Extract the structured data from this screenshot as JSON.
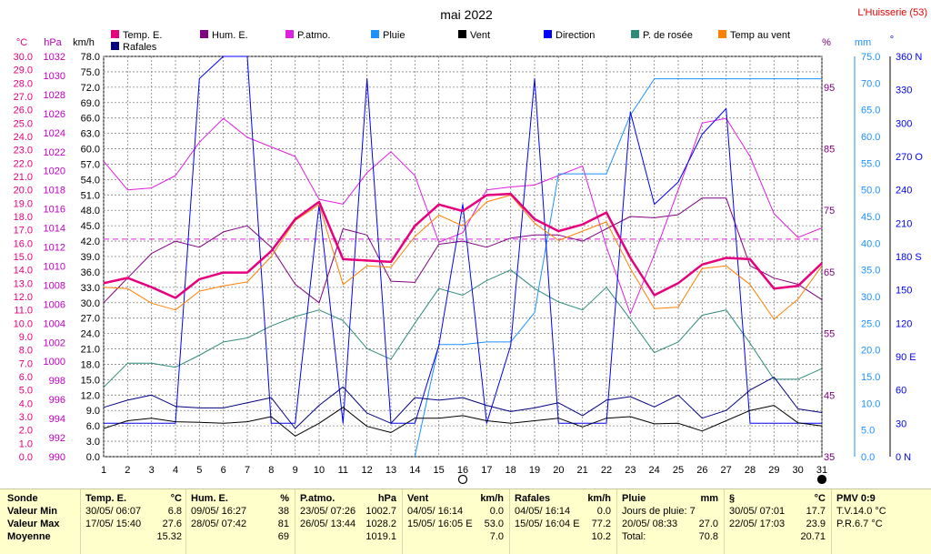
{
  "title": "mai 2022",
  "station": "L'Huisserie (53)",
  "colors": {
    "temp": "#e6007e",
    "hum": "#800080",
    "press": "#e020e0",
    "rain": "#1e90ff",
    "wind": "#000000",
    "dir": "#0000ff",
    "dew": "#2e8b7a",
    "chill": "#ff8000",
    "gust": "#000080",
    "grid": "#808080",
    "text": "#000000",
    "axis_press": "#c000c0"
  },
  "axes": {
    "temp_unit": "°C",
    "press_unit": "hPa",
    "wind_unit": "km/h",
    "hum_unit": "%",
    "rain_unit": "mm",
    "dir_unit": "°",
    "temp_ticks": [
      "0.0",
      "1.0",
      "2.0",
      "3.0",
      "4.0",
      "5.0",
      "6.0",
      "7.0",
      "8.0",
      "9.0",
      "10.0",
      "11.0",
      "12.0",
      "13.0",
      "14.0",
      "15.0",
      "16.0",
      "17.0",
      "18.0",
      "19.0",
      "20.0",
      "21.0",
      "22.0",
      "23.0",
      "24.0",
      "25.0",
      "26.0",
      "27.0",
      "28.0",
      "29.0",
      "30.0"
    ],
    "press_ticks": [
      "990",
      "992",
      "994",
      "996",
      "998",
      "1000",
      "1002",
      "1004",
      "1006",
      "1008",
      "1010",
      "1012",
      "1014",
      "1016",
      "1018",
      "1020",
      "1022",
      "1024",
      "1026",
      "1028",
      "1030",
      "1032"
    ],
    "wind_ticks": [
      "0.0",
      "3.0",
      "6.0",
      "9.0",
      "12.0",
      "15.0",
      "18.0",
      "21.0",
      "24.0",
      "27.0",
      "30.0",
      "33.0",
      "36.0",
      "39.0",
      "42.0",
      "45.0",
      "48.0",
      "51.0",
      "54.0",
      "57.0",
      "60.0",
      "63.0",
      "66.0",
      "69.0",
      "72.0",
      "75.0",
      "78.0"
    ],
    "hum_ticks": [
      "35",
      "45",
      "55",
      "65",
      "75",
      "85",
      "95"
    ],
    "rain_ticks": [
      "0.0",
      "5.0",
      "10.0",
      "15.0",
      "20.0",
      "25.0",
      "30.0",
      "35.0",
      "40.0",
      "45.0",
      "50.0",
      "55.0",
      "60.0",
      "65.0",
      "70.0",
      "75.0"
    ],
    "dir_ticks": [
      "0 N",
      "30",
      "60",
      "90 E",
      "120",
      "150",
      "180 S",
      "210",
      "240",
      "270 O",
      "300",
      "330",
      "360 N"
    ],
    "x_ticks": [
      "1",
      "2",
      "3",
      "4",
      "5",
      "6",
      "7",
      "8",
      "9",
      "10",
      "11",
      "12",
      "13",
      "14",
      "15",
      "16",
      "17",
      "18",
      "19",
      "20",
      "21",
      "22",
      "23",
      "24",
      "25",
      "26",
      "27",
      "28",
      "29",
      "30",
      "31"
    ]
  },
  "legend": [
    {
      "label": "Temp. E.",
      "color": "#e6007e"
    },
    {
      "label": "Hum. E.",
      "color": "#800080"
    },
    {
      "label": "P.atmo.",
      "color": "#e020e0"
    },
    {
      "label": "Pluie",
      "color": "#1e90ff"
    },
    {
      "label": "Vent",
      "color": "#000000"
    },
    {
      "label": "Direction",
      "color": "#0000ff"
    },
    {
      "label": "P. de rosée",
      "color": "#2e8b7a"
    },
    {
      "label": "Temp au vent",
      "color": "#ff8000"
    },
    {
      "label": "Rafales",
      "color": "#000080"
    }
  ],
  "chart_data": {
    "type": "line",
    "title": "mai 2022",
    "x": [
      1,
      2,
      3,
      4,
      5,
      6,
      7,
      8,
      9,
      10,
      11,
      12,
      13,
      14,
      15,
      16,
      17,
      18,
      19,
      20,
      21,
      22,
      23,
      24,
      25,
      26,
      27,
      28,
      29,
      30,
      31
    ],
    "xlim": [
      1,
      31
    ],
    "temp_ylim": [
      0,
      30
    ],
    "press_ylim": [
      990,
      1032
    ],
    "wind_ylim": [
      0,
      78
    ],
    "hum_ylim": [
      35,
      100
    ],
    "rain_ylim": [
      0,
      75
    ],
    "dir_ylim": [
      0,
      360
    ],
    "grid": true,
    "series": [
      {
        "name": "Temp. E.",
        "axis": "temp",
        "color": "#e6007e",
        "width": 2.5,
        "values": [
          13.0,
          13.4,
          12.7,
          11.9,
          13.3,
          13.8,
          13.8,
          15.4,
          17.8,
          19.1,
          14.8,
          14.7,
          14.6,
          17.3,
          18.9,
          18.4,
          19.6,
          19.7,
          17.8,
          16.9,
          17.4,
          18.3,
          14.9,
          12.1,
          13.0,
          14.4,
          14.9,
          14.8,
          12.6,
          12.8,
          14.5
        ]
      },
      {
        "name": "Hum. E.",
        "axis": "hum",
        "color": "#800080",
        "width": 1,
        "values": [
          60,
          64,
          68,
          70,
          69,
          71.5,
          72.5,
          69,
          63,
          60,
          72,
          71,
          63.5,
          63.3,
          69.5,
          70,
          69,
          70.5,
          71,
          71,
          70,
          72,
          74,
          73.8,
          74.3,
          77,
          77,
          66,
          64,
          63,
          60.5
        ]
      },
      {
        "name": "P.atmo.",
        "axis": "press",
        "color": "#e020e0",
        "width": 1,
        "values": [
          1021.0,
          1018.0,
          1018.2,
          1019.5,
          1023.0,
          1025.5,
          1023.5,
          1022.5,
          1021.5,
          1017.0,
          1016.5,
          1019.8,
          1022.0,
          1019.5,
          1012.5,
          1013.5,
          1018.0,
          1018.3,
          1018.5,
          1019.5,
          1020.5,
          1012.0,
          1005.0,
          1011.2,
          1018.0,
          1025.0,
          1025.5,
          1021.5,
          1015.5,
          1013.0,
          1014.0
        ]
      },
      {
        "name": "Pluie",
        "axis": "rain",
        "color": "#1e90ff",
        "width": 1,
        "values": [
          null,
          null,
          null,
          null,
          null,
          null,
          null,
          null,
          null,
          null,
          null,
          null,
          null,
          0.0,
          21.0,
          21.0,
          21.5,
          21.5,
          27.0,
          53.0,
          53.0,
          53.0,
          64.0,
          70.8,
          70.8,
          70.8,
          70.8,
          70.8,
          70.8,
          70.8,
          70.8
        ]
      },
      {
        "name": "Vent",
        "axis": "wind",
        "color": "#000000",
        "width": 1,
        "values": [
          5.5,
          7.0,
          7.5,
          6.8,
          6.7,
          6.5,
          6.8,
          7.8,
          4.0,
          6.5,
          9.6,
          5.9,
          4.7,
          7.5,
          7.5,
          8.0,
          7.0,
          6.5,
          7.0,
          7.5,
          5.8,
          7.5,
          7.8,
          6.4,
          6.5,
          5.0,
          7.0,
          9.0,
          10.0,
          6.6,
          6.0
        ]
      },
      {
        "name": "Direction",
        "axis": "dir",
        "color": "#0000ff",
        "width": 1,
        "values": [
          30,
          30,
          30,
          30,
          340,
          360,
          360,
          30,
          30,
          227,
          30,
          340,
          30,
          30,
          100,
          227,
          30,
          100,
          340,
          30,
          30,
          30,
          310,
          227,
          247,
          290,
          313,
          30,
          30,
          30,
          30
        ]
      },
      {
        "name": "P. de rosée",
        "axis": "temp",
        "color": "#2e8b7a",
        "width": 1,
        "values": [
          5.2,
          7.0,
          7.0,
          6.7,
          7.6,
          8.6,
          8.9,
          9.8,
          10.5,
          11.0,
          10.2,
          8.1,
          7.3,
          10.0,
          12.6,
          12.1,
          13.2,
          14.0,
          12.6,
          11.6,
          11.0,
          12.7,
          10.3,
          7.8,
          8.6,
          10.6,
          11.0,
          8.5,
          5.8,
          5.8,
          6.6
        ]
      },
      {
        "name": "Temp au vent",
        "axis": "temp",
        "color": "#ff8000",
        "width": 1,
        "values": [
          12.7,
          12.6,
          11.5,
          11.0,
          12.4,
          12.8,
          13.1,
          15.0,
          17.7,
          18.9,
          12.9,
          14.3,
          14.2,
          16.5,
          18.1,
          17.3,
          19.1,
          19.6,
          17.5,
          16.2,
          16.9,
          17.6,
          14.1,
          11.1,
          11.2,
          14.1,
          14.3,
          12.9,
          10.3,
          11.8,
          14.3
        ]
      },
      {
        "name": "Rafales",
        "axis": "wind",
        "color": "#000080",
        "width": 1,
        "values": [
          9.6,
          11.0,
          12.0,
          9.8,
          9.5,
          9.5,
          10.5,
          11.5,
          5.5,
          10.0,
          13.6,
          8.5,
          6.5,
          11.5,
          11.0,
          11.5,
          10.0,
          8.8,
          9.5,
          10.5,
          8.0,
          11.0,
          11.7,
          9.7,
          12.0,
          7.5,
          9.0,
          13.0,
          15.5,
          9.3,
          8.6
        ]
      }
    ],
    "reference_lines": [
      {
        "axis": "temp",
        "value": 16.3,
        "color": "#e020e0",
        "dash": true
      }
    ],
    "markers": [
      {
        "x": 16,
        "symbol": "open-circle"
      },
      {
        "x": 31,
        "symbol": "filled-circle"
      }
    ]
  },
  "stats": {
    "row_labels": [
      "Sonde",
      "Valeur Min",
      "Valeur Max",
      "Moyenne"
    ],
    "columns": [
      {
        "title": "Temp. E.",
        "unit": "°C",
        "rows": [
          [
            "30/05/ 06:07",
            "6.8"
          ],
          [
            "17/05/ 15:40",
            "27.6"
          ],
          [
            "",
            "15.32"
          ]
        ]
      },
      {
        "title": "Hum. E.",
        "unit": "%",
        "rows": [
          [
            "09/05/ 16:27",
            "38"
          ],
          [
            "28/05/ 07:42",
            "81"
          ],
          [
            "",
            "69"
          ]
        ]
      },
      {
        "title": "P.atmo.",
        "unit": "hPa",
        "rows": [
          [
            "23/05/ 07:26",
            "1002.7"
          ],
          [
            "26/05/ 13:44",
            "1028.2"
          ],
          [
            "",
            "1019.1"
          ]
        ]
      },
      {
        "title": "Vent",
        "unit": "km/h",
        "rows": [
          [
            "04/05/ 16:14",
            "0.0"
          ],
          [
            "15/05/ 16:05 E",
            "53.0"
          ],
          [
            "",
            "7.0"
          ]
        ]
      },
      {
        "title": "Rafales",
        "unit": "km/h",
        "rows": [
          [
            "04/05/ 16:14",
            "0.0"
          ],
          [
            "15/05/ 16:04 E",
            "77.2"
          ],
          [
            "",
            "10.2"
          ]
        ]
      },
      {
        "title": "Pluie",
        "unit": "mm",
        "rows": [
          [
            "Jours de pluie: 7",
            ""
          ],
          [
            "20/05/ 08:33",
            "27.0"
          ],
          [
            "Total:",
            "70.8"
          ]
        ]
      },
      {
        "title": "§",
        "unit": "°C",
        "rows": [
          [
            "30/05/ 07:01",
            "17.7"
          ],
          [
            "22/05/ 17:03",
            "23.9"
          ],
          [
            "",
            "20.71"
          ]
        ]
      },
      {
        "title": "PMV 0:9",
        "unit": "",
        "rows": [
          [
            "T.V.14.0 °C",
            ""
          ],
          [
            "P.R.6.7 °C",
            ""
          ],
          [
            "",
            ""
          ]
        ]
      }
    ]
  }
}
